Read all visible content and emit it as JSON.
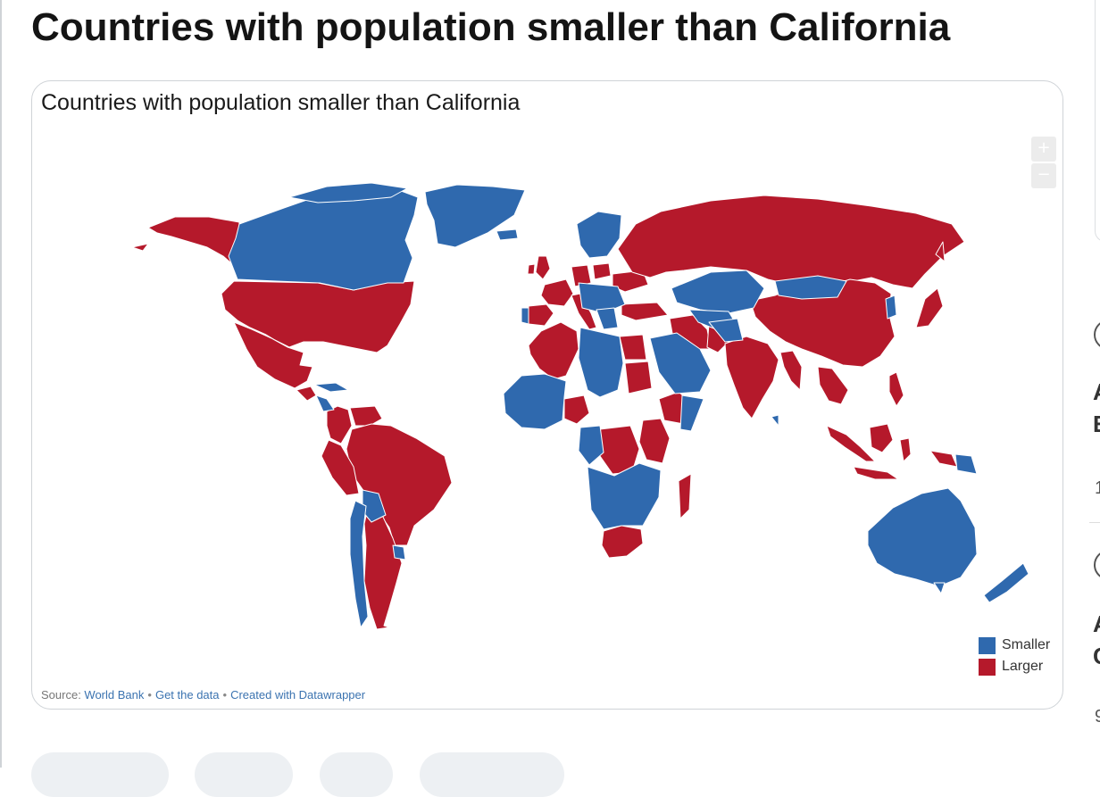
{
  "page_title": "Countries with population smaller than California",
  "map": {
    "title": "Countries with population smaller than California",
    "zoom_in_label": "+",
    "zoom_out_label": "−",
    "colors": {
      "smaller": "#2f69ae",
      "larger": "#b5192b",
      "border": "#ffffff"
    },
    "legend": [
      {
        "label": "Smaller",
        "color": "#2f69ae"
      },
      {
        "label": "Larger",
        "color": "#b5192b"
      }
    ]
  },
  "source": {
    "prefix": "Source: ",
    "source_link": "World Bank",
    "data_link": "Get the data",
    "credit_link": "Created with Datawrapper"
  },
  "sidebar": {
    "item1_line1": "A",
    "item1_line2": "E",
    "item1_meta": "1",
    "item2_line1": "A",
    "item2_line2": "C",
    "item2_meta": "9"
  }
}
